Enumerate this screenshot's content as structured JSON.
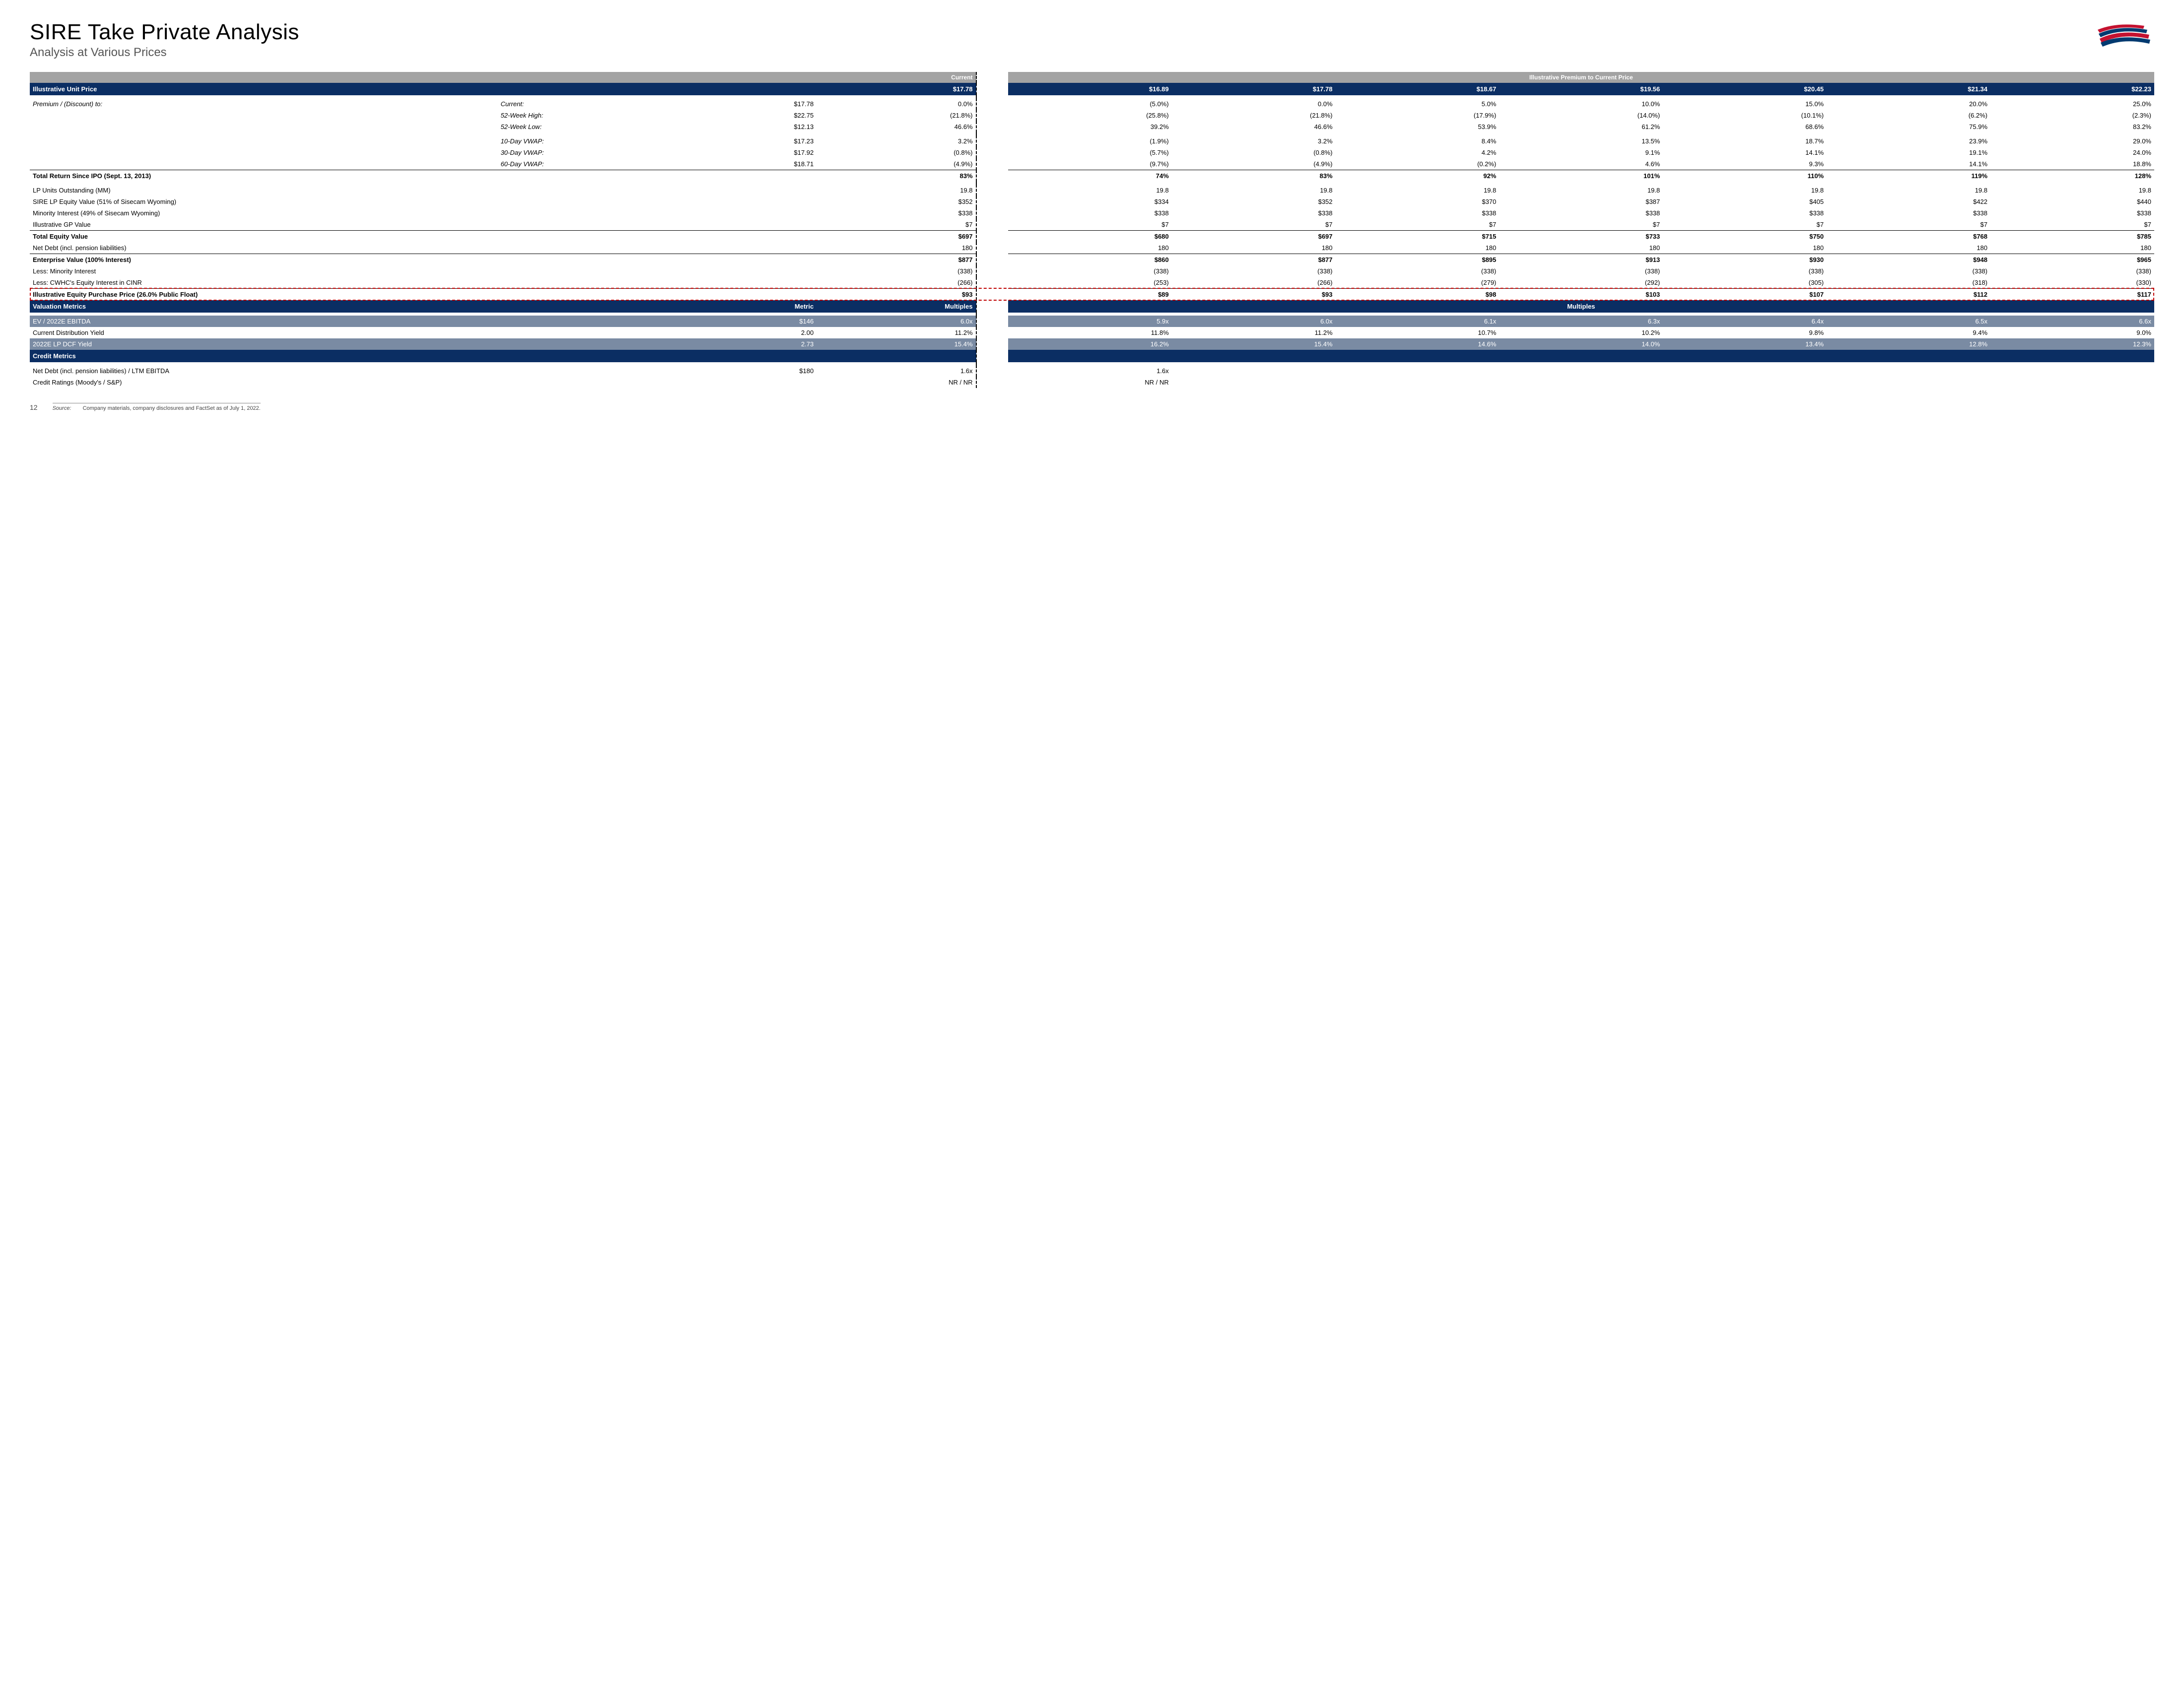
{
  "title": "SIRE Take Private Analysis",
  "subtitle": "Analysis at Various Prices",
  "page_number": "12",
  "source": "Company materials, company disclosures and FactSet as of July 1, 2022.",
  "source_label": "Source:",
  "column_headers": {
    "current": "Current",
    "illustrative": "Illustrative Premium to Current Price",
    "metric": "Metric",
    "multiples": "Multiples",
    "multiples2": "Multiples"
  },
  "section_headers": {
    "unit_price": "Illustrative Unit Price",
    "valuation": "Valuation Metrics",
    "credit": "Credit Metrics"
  },
  "unit_prices": [
    "$17.78",
    "$16.89",
    "$17.78",
    "$18.67",
    "$19.56",
    "$20.45",
    "$21.34",
    "$22.23"
  ],
  "premium_label": "Premium / (Discount) to:",
  "premium_rows": [
    {
      "label": "Current:",
      "base": "$17.78",
      "vals": [
        "0.0%",
        "(5.0%)",
        "0.0%",
        "5.0%",
        "10.0%",
        "15.0%",
        "20.0%",
        "25.0%"
      ]
    },
    {
      "label": "52-Week High:",
      "base": "$22.75",
      "vals": [
        "(21.8%)",
        "(25.8%)",
        "(21.8%)",
        "(17.9%)",
        "(14.0%)",
        "(10.1%)",
        "(6.2%)",
        "(2.3%)"
      ]
    },
    {
      "label": "52-Week Low:",
      "base": "$12.13",
      "vals": [
        "46.6%",
        "39.2%",
        "46.6%",
        "53.9%",
        "61.2%",
        "68.6%",
        "75.9%",
        "83.2%"
      ]
    },
    {
      "label": "10-Day VWAP:",
      "base": "$17.23",
      "vals": [
        "3.2%",
        "(1.9%)",
        "3.2%",
        "8.4%",
        "13.5%",
        "18.7%",
        "23.9%",
        "29.0%"
      ]
    },
    {
      "label": "30-Day VWAP:",
      "base": "$17.92",
      "vals": [
        "(0.8%)",
        "(5.7%)",
        "(0.8%)",
        "4.2%",
        "9.1%",
        "14.1%",
        "19.1%",
        "24.0%"
      ]
    },
    {
      "label": "60-Day VWAP:",
      "base": "$18.71",
      "vals": [
        "(4.9%)",
        "(9.7%)",
        "(4.9%)",
        "(0.2%)",
        "4.6%",
        "9.3%",
        "14.1%",
        "18.8%"
      ]
    }
  ],
  "total_return": {
    "label": "Total Return Since IPO (Sept. 13, 2013)",
    "vals": [
      "83%",
      "74%",
      "83%",
      "92%",
      "101%",
      "110%",
      "119%",
      "128%"
    ]
  },
  "build_rows": [
    {
      "label": "LP Units Outstanding (MM)",
      "vals": [
        "19.8",
        "19.8",
        "19.8",
        "19.8",
        "19.8",
        "19.8",
        "19.8",
        "19.8"
      ]
    },
    {
      "label": "SIRE LP Equity Value (51% of Sisecam Wyoming)",
      "vals": [
        "$352",
        "$334",
        "$352",
        "$370",
        "$387",
        "$405",
        "$422",
        "$440"
      ]
    },
    {
      "label": "Minority Interest (49% of Sisecam Wyoming)",
      "vals": [
        "$338",
        "$338",
        "$338",
        "$338",
        "$338",
        "$338",
        "$338",
        "$338"
      ]
    },
    {
      "label": "Illustrative GP Value",
      "vals": [
        "$7",
        "$7",
        "$7",
        "$7",
        "$7",
        "$7",
        "$7",
        "$7"
      ],
      "underline": true
    },
    {
      "label": "Total Equity Value",
      "bold": true,
      "vals": [
        "$697",
        "$680",
        "$697",
        "$715",
        "$733",
        "$750",
        "$768",
        "$785"
      ]
    },
    {
      "label": "Net Debt (incl. pension liabilities)",
      "vals": [
        "180",
        "180",
        "180",
        "180",
        "180",
        "180",
        "180",
        "180"
      ],
      "underline": true
    },
    {
      "label": "Enterprise Value (100% Interest)",
      "bold": true,
      "vals": [
        "$877",
        "$860",
        "$877",
        "$895",
        "$913",
        "$930",
        "$948",
        "$965"
      ]
    },
    {
      "label": "Less: Minority Interest",
      "vals": [
        "(338)",
        "(338)",
        "(338)",
        "(338)",
        "(338)",
        "(338)",
        "(338)",
        "(338)"
      ]
    },
    {
      "label": "Less: CWHC's Equity Interest in CINR",
      "vals": [
        "(266)",
        "(253)",
        "(266)",
        "(279)",
        "(292)",
        "(305)",
        "(318)",
        "(330)"
      ],
      "underline": true
    }
  ],
  "purchase_price": {
    "label": "Illustrative Equity Purchase Price (26.0% Public Float)",
    "vals": [
      "$93",
      "$89",
      "$93",
      "$98",
      "$103",
      "$107",
      "$112",
      "$117"
    ]
  },
  "valuation_rows": [
    {
      "label": "EV / 2022E EBITDA",
      "metric": "$146",
      "style": "blue",
      "vals": [
        "6.0x",
        "5.9x",
        "6.0x",
        "6.1x",
        "6.3x",
        "6.4x",
        "6.5x",
        "6.6x"
      ]
    },
    {
      "label": "Current Distribution Yield",
      "metric": "2.00",
      "vals": [
        "11.2%",
        "11.8%",
        "11.2%",
        "10.7%",
        "10.2%",
        "9.8%",
        "9.4%",
        "9.0%"
      ]
    },
    {
      "label": "2022E LP DCF Yield",
      "metric": "2.73",
      "style": "blue",
      "vals": [
        "15.4%",
        "16.2%",
        "15.4%",
        "14.6%",
        "14.0%",
        "13.4%",
        "12.8%",
        "12.3%"
      ]
    }
  ],
  "credit_rows": [
    {
      "label": "Net Debt (incl. pension liabilities) / LTM EBITDA",
      "metric": "$180",
      "vals": [
        "1.6x",
        "1.6x",
        "",
        "",
        "",
        "",
        "",
        ""
      ]
    },
    {
      "label": "Credit Ratings (Moody's / S&P)",
      "metric": "",
      "vals": [
        "NR / NR",
        "NR / NR",
        "",
        "",
        "",
        "",
        "",
        ""
      ]
    }
  ],
  "colors": {
    "banner": "#0b2e63",
    "graybar": "#a3a3a3",
    "bluebar": "#7a8ba3",
    "red_dash": "#c00000"
  }
}
